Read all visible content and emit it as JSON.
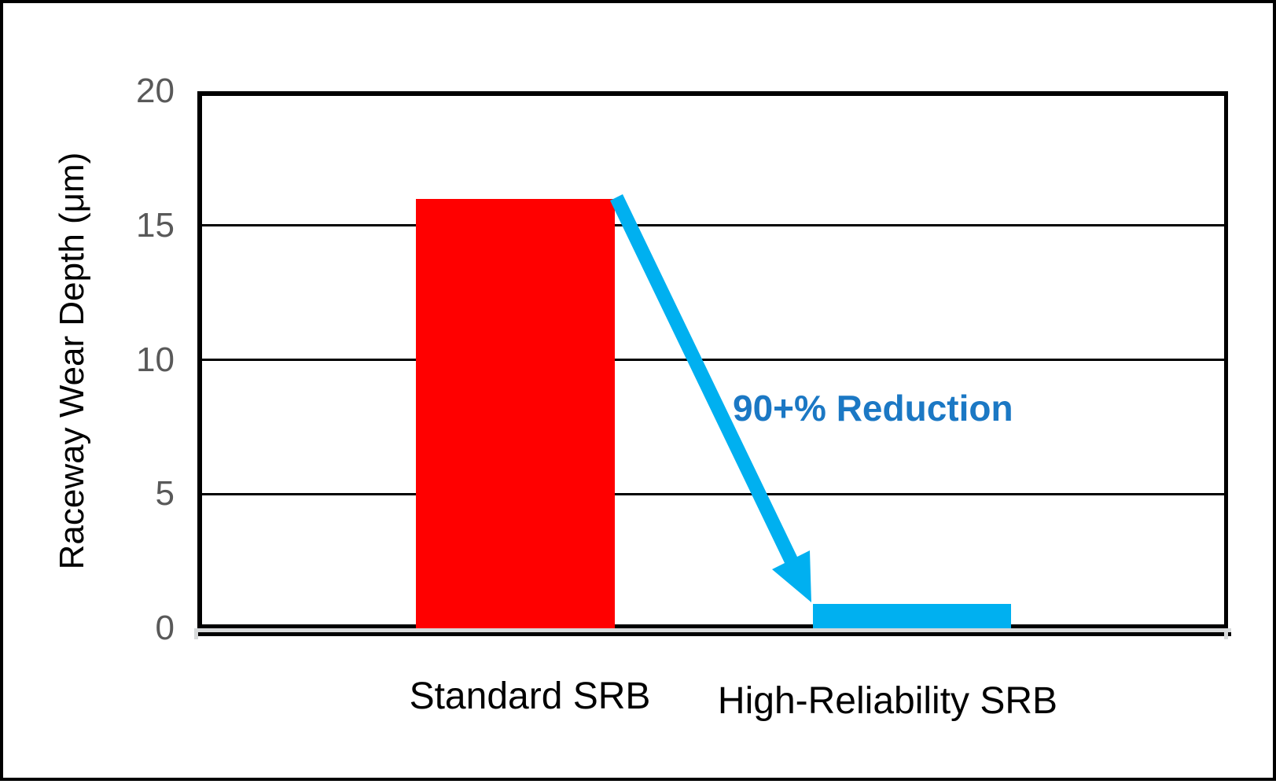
{
  "figure": {
    "background": "#ffffff",
    "border_color": "#000000"
  },
  "chart_data": {
    "type": "bar",
    "title": "",
    "categories": [
      "Standard SRB",
      "High-Reliability SRB"
    ],
    "values": [
      16,
      0.9
    ],
    "bar_colors": [
      "#ff0000",
      "#00b0f0"
    ],
    "xlabel": "",
    "ylabel": "Raceway Wear Depth (μm)",
    "ylim": [
      0,
      20
    ],
    "yticks": [
      0,
      5,
      10,
      15,
      20
    ],
    "grid": "horizontal",
    "legend": "none",
    "tick_label_color": "#595959",
    "annotation": {
      "text": "90+% Reduction",
      "color": "#1b78c4",
      "arrow_color": "#00b0f0",
      "arrow_from_category": "Standard SRB",
      "arrow_to_category": "High-Reliability SRB"
    }
  }
}
